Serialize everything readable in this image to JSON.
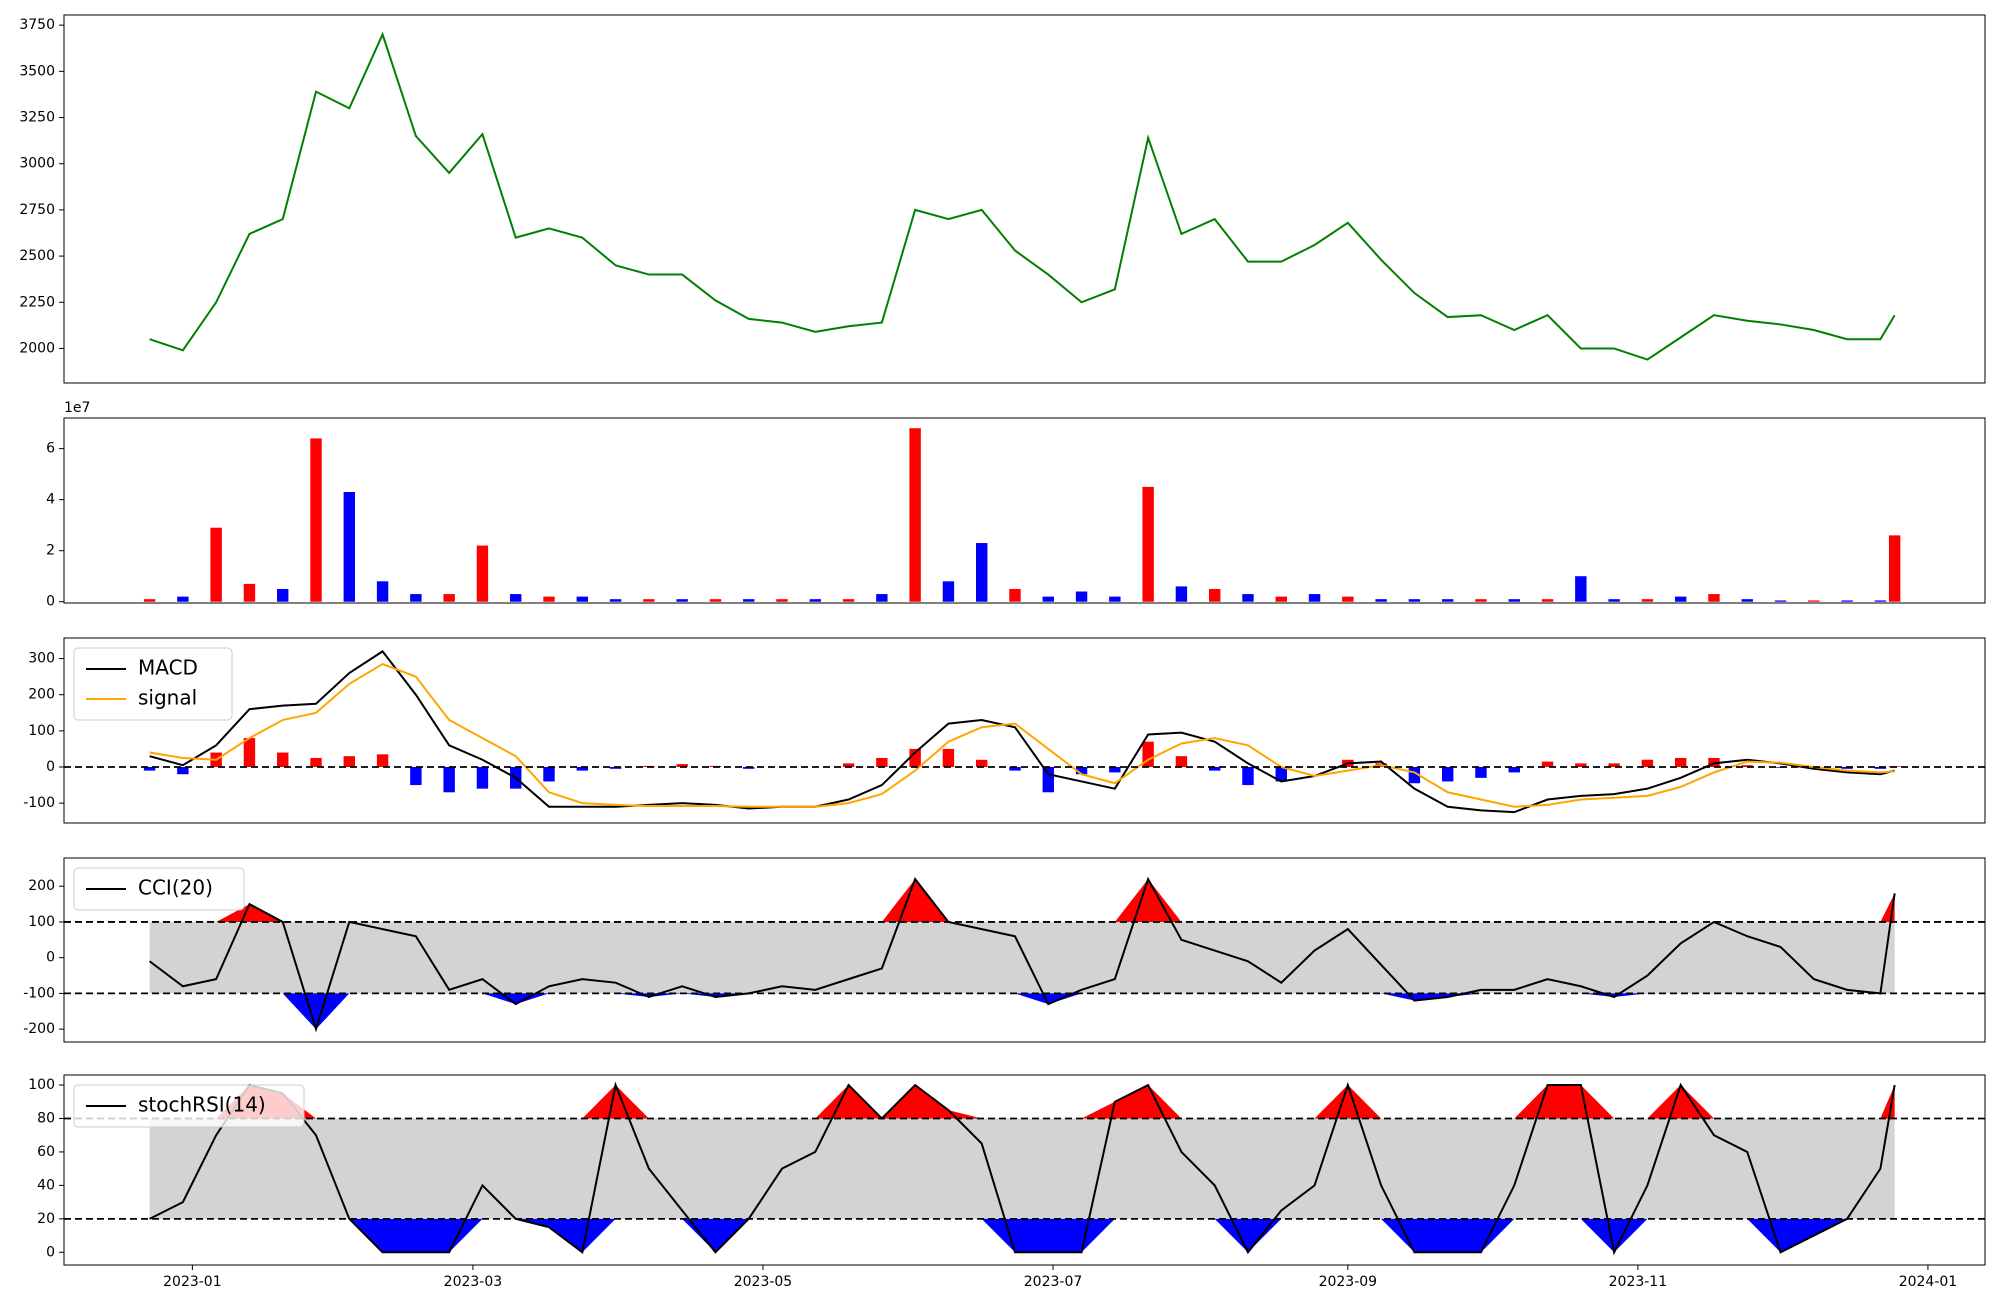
{
  "chart_data": [
    {
      "type": "line",
      "x": [
        19349,
        19356,
        19363,
        19370,
        19377,
        19384,
        19391,
        19398,
        19405,
        19412,
        19419,
        19426,
        19433,
        19440,
        19447,
        19454,
        19461,
        19468,
        19475,
        19482,
        19489,
        19496,
        19503,
        19510,
        19517,
        19524,
        19531,
        19538,
        19545,
        19552,
        19559,
        19566,
        19573,
        19580,
        19587,
        19594,
        19601,
        19608,
        19615,
        19622,
        19629,
        19636,
        19643,
        19650,
        19657,
        19664,
        19671,
        19678,
        19685,
        19692,
        19699,
        19706,
        19713,
        19716
      ],
      "series": [
        {
          "color": "green",
          "values": [
            2050,
            1990,
            2250,
            2620,
            2700,
            3390,
            3300,
            3700,
            3150,
            2950,
            3160,
            2600,
            2650,
            2600,
            2450,
            2400,
            2400,
            2260,
            2160,
            2140,
            2090,
            2120,
            2140,
            2750,
            2700,
            2750,
            2530,
            2400,
            2250,
            2320,
            3140,
            2620,
            2700,
            2470,
            2470,
            2560,
            2680,
            2480,
            2300,
            2170,
            2180,
            2100,
            2180,
            2000,
            2000,
            1940,
            2060,
            2180,
            2150,
            2130,
            2100,
            2050,
            2050,
            2180
          ]
        }
      ],
      "xlim": [
        19331,
        19735
      ],
      "ylim": [
        1813,
        3805
      ],
      "yticks": [
        2000,
        2250,
        2500,
        2750,
        3000,
        3250,
        3500,
        3750
      ]
    },
    {
      "type": "bar",
      "x": [
        19349,
        19356,
        19363,
        19370,
        19377,
        19384,
        19391,
        19398,
        19405,
        19412,
        19419,
        19426,
        19433,
        19440,
        19447,
        19454,
        19461,
        19468,
        19475,
        19482,
        19489,
        19496,
        19503,
        19510,
        19517,
        19524,
        19531,
        19538,
        19545,
        19552,
        19559,
        19566,
        19573,
        19580,
        19587,
        19594,
        19601,
        19608,
        19615,
        19622,
        19629,
        19636,
        19643,
        19650,
        19657,
        19664,
        19671,
        19678,
        19685,
        19692,
        19699,
        19706,
        19713,
        19716
      ],
      "values": [
        0.1,
        0.2,
        2.9,
        0.7,
        0.5,
        6.4,
        4.3,
        0.8,
        0.3,
        0.3,
        2.2,
        0.3,
        0.2,
        0.2,
        0.1,
        0.1,
        0.1,
        0.1,
        0.1,
        0.1,
        0.1,
        0.1,
        0.3,
        6.8,
        0.8,
        2.3,
        0.5,
        0.2,
        0.4,
        0.2,
        4.5,
        0.6,
        0.5,
        0.3,
        0.2,
        0.3,
        0.2,
        0.1,
        0.1,
        0.1,
        0.1,
        0.1,
        0.1,
        1.0,
        0.1,
        0.1,
        0.2,
        0.3,
        0.1,
        0.05,
        0.05,
        0.05,
        0.05,
        2.6
      ],
      "colors": [
        "red",
        "blue",
        "red",
        "red",
        "blue",
        "red",
        "blue",
        "blue",
        "blue",
        "red",
        "red",
        "blue",
        "red",
        "blue",
        "blue",
        "red",
        "blue",
        "red",
        "blue",
        "red",
        "blue",
        "red",
        "blue",
        "red",
        "blue",
        "blue",
        "red",
        "blue",
        "blue",
        "blue",
        "red",
        "blue",
        "red",
        "blue",
        "red",
        "blue",
        "red",
        "blue",
        "blue",
        "blue",
        "red",
        "blue",
        "red",
        "blue",
        "blue",
        "red",
        "blue",
        "red",
        "blue",
        "blue",
        "red",
        "blue",
        "blue",
        "red"
      ],
      "offset_label": "1e7",
      "xlim": [
        19331,
        19735
      ],
      "ylim": [
        -0.05,
        7.2
      ],
      "yticks": [
        0,
        2,
        4,
        6
      ]
    },
    {
      "type": "line",
      "x": [
        19349,
        19356,
        19363,
        19370,
        19377,
        19384,
        19391,
        19398,
        19405,
        19412,
        19419,
        19426,
        19433,
        19440,
        19447,
        19454,
        19461,
        19468,
        19475,
        19482,
        19489,
        19496,
        19503,
        19510,
        19517,
        19524,
        19531,
        19538,
        19545,
        19552,
        19559,
        19566,
        19573,
        19580,
        19587,
        19594,
        19601,
        19608,
        19615,
        19622,
        19629,
        19636,
        19643,
        19650,
        19657,
        19664,
        19671,
        19678,
        19685,
        19692,
        19699,
        19706,
        19713,
        19716
      ],
      "series": [
        {
          "name": "MACD",
          "color": "black",
          "values": [
            30,
            5,
            60,
            160,
            170,
            175,
            260,
            320,
            200,
            60,
            20,
            -30,
            -110,
            -110,
            -110,
            -105,
            -100,
            -105,
            -115,
            -110,
            -110,
            -90,
            -50,
            40,
            120,
            130,
            110,
            -20,
            -40,
            -60,
            90,
            95,
            70,
            10,
            -40,
            -25,
            10,
            15,
            -60,
            -110,
            -120,
            -125,
            -90,
            -80,
            -75,
            -60,
            -30,
            10,
            20,
            10,
            -5,
            -15,
            -20,
            -10
          ]
        },
        {
          "name": "signal",
          "color": "orange",
          "values": [
            40,
            25,
            20,
            80,
            130,
            150,
            230,
            285,
            250,
            130,
            80,
            30,
            -70,
            -100,
            -105,
            -108,
            -108,
            -108,
            -110,
            -110,
            -110,
            -100,
            -75,
            -10,
            70,
            110,
            120,
            50,
            -20,
            -45,
            20,
            65,
            80,
            60,
            0,
            -25,
            -10,
            5,
            -15,
            -70,
            -90,
            -110,
            -105,
            -90,
            -85,
            -80,
            -55,
            -15,
            15,
            12,
            0,
            -10,
            -15,
            -12
          ]
        }
      ],
      "bars": {
        "pos_color": "red",
        "neg_color": "blue",
        "values": [
          -10,
          -20,
          40,
          80,
          40,
          25,
          30,
          35,
          -50,
          -70,
          -60,
          -60,
          -40,
          -10,
          -5,
          3,
          8,
          3,
          -5,
          0,
          0,
          10,
          25,
          50,
          50,
          20,
          -10,
          -70,
          -20,
          -15,
          70,
          30,
          -10,
          -50,
          -40,
          0,
          20,
          10,
          -45,
          -40,
          -30,
          -15,
          15,
          10,
          10,
          20,
          25,
          25,
          5,
          -2,
          -5,
          -5,
          -5,
          2
        ]
      },
      "hlines": [
        0
      ],
      "legend": "upper left",
      "xlim": [
        19331,
        19735
      ],
      "ylim": [
        -155,
        357
      ],
      "yticks": [
        -100,
        0,
        100,
        200,
        300
      ]
    },
    {
      "type": "band",
      "x": [
        19349,
        19356,
        19363,
        19370,
        19377,
        19384,
        19391,
        19398,
        19405,
        19412,
        19419,
        19426,
        19433,
        19440,
        19447,
        19454,
        19461,
        19468,
        19475,
        19482,
        19489,
        19496,
        19503,
        19510,
        19517,
        19524,
        19531,
        19538,
        19545,
        19552,
        19559,
        19566,
        19573,
        19580,
        19587,
        19594,
        19601,
        19608,
        19615,
        19622,
        19629,
        19636,
        19643,
        19650,
        19657,
        19664,
        19671,
        19678,
        19685,
        19692,
        19699,
        19706,
        19713,
        19716
      ],
      "series": [
        {
          "name": "CCI(20)",
          "color": "black",
          "values": [
            -10,
            -80,
            -60,
            150,
            100,
            -200,
            100,
            80,
            60,
            -90,
            -60,
            -130,
            -80,
            -60,
            -70,
            -110,
            -80,
            -110,
            -100,
            -80,
            -90,
            -60,
            -30,
            220,
            100,
            80,
            60,
            -130,
            -90,
            -60,
            220,
            50,
            20,
            -10,
            -70,
            20,
            80,
            -20,
            -120,
            -110,
            -90,
            -90,
            -60,
            -80,
            -110,
            -50,
            40,
            100,
            60,
            30,
            -60,
            -90,
            -100,
            180
          ]
        }
      ],
      "bands": [
        -100,
        100
      ],
      "band_color": "lightgray",
      "above_color": "red",
      "below_color": "blue",
      "legend": "upper left",
      "xlim": [
        19331,
        19735
      ],
      "ylim": [
        -236,
        279
      ],
      "yticks": [
        -200,
        -100,
        0,
        100,
        200
      ]
    },
    {
      "type": "band",
      "x": [
        19349,
        19356,
        19363,
        19370,
        19377,
        19384,
        19391,
        19398,
        19405,
        19412,
        19419,
        19426,
        19433,
        19440,
        19447,
        19454,
        19461,
        19468,
        19475,
        19482,
        19489,
        19496,
        19503,
        19510,
        19517,
        19524,
        19531,
        19538,
        19545,
        19552,
        19559,
        19566,
        19573,
        19580,
        19587,
        19594,
        19601,
        19608,
        19615,
        19622,
        19629,
        19636,
        19643,
        19650,
        19657,
        19664,
        19671,
        19678,
        19685,
        19692,
        19699,
        19706,
        19713,
        19716
      ],
      "series": [
        {
          "name": "stochRSI(14)",
          "color": "black",
          "values": [
            20,
            30,
            70,
            100,
            95,
            70,
            20,
            0,
            0,
            0,
            40,
            20,
            15,
            0,
            100,
            50,
            25,
            0,
            20,
            50,
            60,
            100,
            80,
            100,
            85,
            65,
            0,
            0,
            0,
            90,
            100,
            60,
            40,
            0,
            25,
            40,
            100,
            40,
            0,
            0,
            0,
            40,
            100,
            100,
            0,
            40,
            100,
            70,
            60,
            0,
            10,
            20,
            50,
            100
          ]
        }
      ],
      "bands": [
        20,
        80
      ],
      "band_color": "lightgray",
      "above_color": "red",
      "below_color": "blue",
      "legend": "upper left",
      "xlim": [
        19331,
        19735
      ],
      "ylim": [
        -7.6,
        106
      ],
      "yticks": [
        0,
        20,
        40,
        60,
        80,
        100
      ],
      "xticks": [
        {
          "value": 19358,
          "label": "2023-01"
        },
        {
          "value": 19417,
          "label": "2023-03"
        },
        {
          "value": 19478,
          "label": "2023-05"
        },
        {
          "value": 19539,
          "label": "2023-07"
        },
        {
          "value": 19601,
          "label": "2023-09"
        },
        {
          "value": 19662,
          "label": "2023-11"
        },
        {
          "value": 19723,
          "label": "2024-01"
        }
      ]
    }
  ]
}
